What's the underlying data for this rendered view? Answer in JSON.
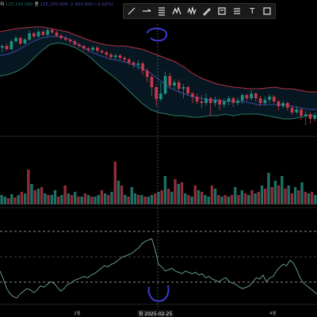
{
  "legend": {
    "row1_prefix": "저",
    "row1_value": "125,150,000",
    "row2_prefix": "종",
    "row2_value": "125,150,000",
    "row2_change": "-2,950,000 (-2.02%)"
  },
  "toolbar": {
    "tools": [
      {
        "name": "trendline-tool-icon",
        "glyph": ""
      },
      {
        "name": "horizontal-ray-tool-icon",
        "glyph": ""
      },
      {
        "name": "fib-retracement-tool-icon",
        "glyph": ""
      },
      {
        "name": "pattern-tool-icon",
        "glyph": ""
      },
      {
        "name": "elliott-wave-tool-icon",
        "glyph": ""
      },
      {
        "name": "brush-tool-icon",
        "glyph": ""
      },
      {
        "name": "text-note-tool-icon",
        "glyph": ""
      },
      {
        "name": "grid-tool-icon",
        "glyph": ""
      },
      {
        "name": "text-tool-icon",
        "glyph": "T"
      },
      {
        "name": "rectangle-tool-icon",
        "glyph": ""
      }
    ]
  },
  "x_axis": {
    "labels": [
      "2월",
      "4월"
    ],
    "crosshair_date": "화 2025-02-25"
  },
  "colors": {
    "up": "#1f8f80",
    "down": "#c8374a",
    "upper_band": "#b03246",
    "middle_band": "#3a4aa8",
    "lower_band": "#2a7a68",
    "volume_up": "#1e6e64",
    "volume_down": "#8e2c38",
    "oscillator": "#6fa7a0",
    "highlight": "#3b3bd0"
  },
  "chart_data": {
    "type": "candlestick",
    "price": {
      "candles": [
        [
          60,
          58,
          66,
          56
        ],
        [
          58,
          62,
          64,
          55
        ],
        [
          62,
          52,
          63,
          50
        ],
        [
          52,
          48,
          54,
          45
        ],
        [
          48,
          55,
          57,
          46
        ],
        [
          55,
          50,
          56,
          48
        ],
        [
          50,
          42,
          52,
          38
        ],
        [
          42,
          46,
          49,
          40
        ],
        [
          46,
          40,
          48,
          37
        ],
        [
          40,
          44,
          46,
          38
        ],
        [
          44,
          38,
          46,
          36
        ],
        [
          38,
          41,
          43,
          35
        ],
        [
          41,
          45,
          47,
          39
        ],
        [
          45,
          48,
          50,
          43
        ],
        [
          48,
          50,
          52,
          45
        ],
        [
          50,
          52,
          55,
          48
        ],
        [
          52,
          56,
          58,
          50
        ],
        [
          56,
          58,
          60,
          54
        ],
        [
          58,
          61,
          64,
          56
        ],
        [
          61,
          63,
          66,
          59
        ],
        [
          63,
          60,
          65,
          58
        ],
        [
          60,
          64,
          67,
          58
        ],
        [
          64,
          66,
          68,
          62
        ],
        [
          66,
          69,
          72,
          64
        ],
        [
          69,
          72,
          75,
          66
        ],
        [
          72,
          70,
          75,
          68
        ],
        [
          70,
          73,
          76,
          68
        ],
        [
          73,
          75,
          79,
          71
        ],
        [
          75,
          79,
          82,
          73
        ],
        [
          79,
          82,
          86,
          77
        ],
        [
          82,
          80,
          88,
          76
        ],
        [
          80,
          89,
          95,
          78
        ],
        [
          89,
          97,
          104,
          86
        ],
        [
          97,
          110,
          121,
          95
        ],
        [
          110,
          125,
          134,
          108
        ],
        [
          125,
          118,
          128,
          104
        ],
        [
          118,
          96,
          120,
          90
        ],
        [
          96,
          108,
          112,
          92
        ],
        [
          108,
          104,
          113,
          100
        ],
        [
          104,
          112,
          116,
          100
        ],
        [
          112,
          110,
          124,
          106
        ],
        [
          110,
          118,
          120,
          108
        ],
        [
          118,
          122,
          130,
          116
        ],
        [
          122,
          128,
          131,
          118
        ],
        [
          128,
          130,
          136,
          120
        ],
        [
          130,
          124,
          133,
          118
        ],
        [
          124,
          130,
          146,
          122
        ],
        [
          130,
          126,
          134,
          122
        ],
        [
          126,
          132,
          139,
          124
        ],
        [
          132,
          128,
          136,
          124
        ],
        [
          128,
          124,
          133,
          121
        ],
        [
          124,
          130,
          135,
          122
        ],
        [
          130,
          127,
          133,
          123
        ],
        [
          127,
          120,
          131,
          118
        ],
        [
          120,
          124,
          128,
          118
        ],
        [
          124,
          118,
          127,
          114
        ],
        [
          118,
          124,
          128,
          116
        ],
        [
          124,
          130,
          134,
          121
        ],
        [
          130,
          126,
          133,
          122
        ],
        [
          126,
          122,
          130,
          119
        ],
        [
          122,
          128,
          131,
          120
        ],
        [
          128,
          134,
          139,
          126
        ],
        [
          134,
          130,
          137,
          127
        ],
        [
          130,
          136,
          140,
          128
        ],
        [
          136,
          142,
          145,
          133
        ],
        [
          142,
          138,
          144,
          134
        ],
        [
          138,
          146,
          152,
          136
        ],
        [
          146,
          144,
          158,
          140
        ],
        [
          144,
          150,
          156,
          141
        ],
        [
          150,
          146,
          153,
          142
        ]
      ],
      "upper_band_y": [
        40,
        38,
        36,
        35,
        34,
        34,
        36,
        38,
        40,
        44,
        48,
        52,
        55,
        57,
        58,
        58,
        60,
        62,
        66,
        70,
        74,
        78,
        84,
        92,
        98,
        102,
        106,
        108,
        110,
        111,
        112,
        112,
        111,
        110,
        112,
        112,
        114,
        116,
        116
      ],
      "middle_band_y": [
        70,
        68,
        64,
        58,
        52,
        48,
        46,
        46,
        48,
        54,
        60,
        66,
        70,
        74,
        76,
        78,
        82,
        86,
        92,
        100,
        108,
        114,
        118,
        122,
        124,
        126,
        126,
        128,
        128,
        128,
        130,
        132,
        132,
        132,
        132,
        134,
        136,
        138,
        138
      ],
      "lower_band_y": [
        96,
        94,
        90,
        84,
        74,
        64,
        56,
        54,
        56,
        60,
        66,
        74,
        84,
        92,
        100,
        110,
        120,
        130,
        138,
        142,
        144,
        146,
        146,
        148,
        148,
        146,
        146,
        144,
        146,
        144,
        144,
        144,
        146,
        148,
        150,
        150,
        148,
        146,
        146
      ]
    },
    "volume": [
      [
        1,
        12
      ],
      [
        1,
        10
      ],
      [
        0,
        8
      ],
      [
        1,
        13
      ],
      [
        0,
        9
      ],
      [
        1,
        12
      ],
      [
        0,
        16
      ],
      [
        1,
        14
      ],
      [
        0,
        44
      ],
      [
        1,
        26
      ],
      [
        0,
        18
      ],
      [
        1,
        20
      ],
      [
        0,
        22
      ],
      [
        1,
        14
      ],
      [
        0,
        12
      ],
      [
        1,
        12
      ],
      [
        1,
        18
      ],
      [
        0,
        10
      ],
      [
        1,
        12
      ],
      [
        0,
        24
      ],
      [
        1,
        14
      ],
      [
        0,
        12
      ],
      [
        1,
        16
      ],
      [
        0,
        10
      ],
      [
        1,
        10
      ],
      [
        0,
        14
      ],
      [
        1,
        12
      ],
      [
        0,
        10
      ],
      [
        1,
        10
      ],
      [
        1,
        12
      ],
      [
        0,
        18
      ],
      [
        1,
        14
      ],
      [
        0,
        12
      ],
      [
        1,
        16
      ],
      [
        0,
        54
      ],
      [
        1,
        30
      ],
      [
        0,
        24
      ],
      [
        1,
        12
      ],
      [
        0,
        10
      ],
      [
        1,
        22
      ],
      [
        1,
        14
      ],
      [
        0,
        12
      ],
      [
        1,
        12
      ],
      [
        0,
        10
      ],
      [
        1,
        10
      ],
      [
        1,
        12
      ],
      [
        0,
        14
      ],
      [
        1,
        16
      ],
      [
        0,
        18
      ],
      [
        1,
        36
      ],
      [
        0,
        20
      ],
      [
        1,
        16
      ],
      [
        0,
        32
      ],
      [
        1,
        26
      ],
      [
        0,
        28
      ],
      [
        1,
        14
      ],
      [
        0,
        12
      ],
      [
        1,
        10
      ],
      [
        0,
        24
      ],
      [
        1,
        18
      ],
      [
        0,
        16
      ],
      [
        1,
        12
      ],
      [
        1,
        10
      ],
      [
        0,
        24
      ],
      [
        1,
        20
      ],
      [
        0,
        12
      ],
      [
        1,
        10
      ],
      [
        0,
        12
      ],
      [
        1,
        10
      ],
      [
        0,
        12
      ],
      [
        1,
        22
      ],
      [
        0,
        12
      ],
      [
        1,
        18
      ],
      [
        0,
        14
      ],
      [
        1,
        12
      ],
      [
        0,
        18
      ],
      [
        1,
        14
      ],
      [
        0,
        16
      ],
      [
        1,
        24
      ],
      [
        0,
        20
      ],
      [
        1,
        40
      ],
      [
        0,
        22
      ],
      [
        1,
        30
      ],
      [
        0,
        24
      ],
      [
        1,
        36
      ],
      [
        0,
        20
      ],
      [
        1,
        24
      ],
      [
        0,
        14
      ],
      [
        1,
        22
      ],
      [
        0,
        18
      ],
      [
        1,
        28
      ],
      [
        0,
        16
      ],
      [
        1,
        14
      ],
      [
        0,
        16
      ],
      [
        1,
        12
      ]
    ],
    "oscillator": [
      40,
      28,
      14,
      6,
      2,
      0,
      6,
      10,
      14,
      12,
      8,
      12,
      18,
      16,
      20,
      24,
      22,
      16,
      10,
      14,
      20,
      22,
      26,
      28,
      30,
      32,
      30,
      34,
      36,
      40,
      44,
      48,
      46,
      50,
      52,
      56,
      60,
      62,
      64,
      66,
      70,
      74,
      80,
      84,
      86,
      88,
      72,
      50,
      46,
      40,
      42,
      44,
      40,
      38,
      36,
      40,
      38,
      36,
      38,
      34,
      36,
      30,
      32,
      28,
      26,
      24,
      28,
      30,
      24,
      22,
      20,
      16,
      14,
      16,
      18,
      24,
      30,
      28,
      34,
      24,
      30,
      32,
      40,
      46,
      50,
      48,
      56,
      52,
      42,
      30,
      22,
      18,
      14,
      10,
      6
    ]
  }
}
